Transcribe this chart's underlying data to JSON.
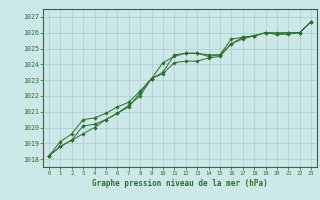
{
  "title": "Graphe pression niveau de la mer (hPa)",
  "bg_color": "#cce8e8",
  "grid_color": "#aacccc",
  "line_color": "#2d6e2d",
  "xlim": [
    -0.5,
    23.5
  ],
  "ylim": [
    1017.5,
    1027.5
  ],
  "yticks": [
    1018,
    1019,
    1020,
    1021,
    1022,
    1023,
    1024,
    1025,
    1026,
    1027
  ],
  "xticks": [
    0,
    1,
    2,
    3,
    4,
    5,
    6,
    7,
    8,
    9,
    10,
    11,
    12,
    13,
    14,
    15,
    16,
    17,
    18,
    19,
    20,
    21,
    22,
    23
  ],
  "series1": [
    1018.2,
    1018.8,
    1019.2,
    1019.6,
    1020.0,
    1020.5,
    1020.9,
    1021.4,
    1022.0,
    1023.1,
    1024.1,
    1024.5,
    1024.7,
    1024.7,
    1024.5,
    1024.6,
    1025.3,
    1025.7,
    1025.8,
    1026.0,
    1025.9,
    1025.9,
    1026.0,
    1026.7
  ],
  "series2": [
    1018.2,
    1018.8,
    1019.2,
    1020.1,
    1020.2,
    1020.5,
    1020.9,
    1021.3,
    1022.2,
    1023.1,
    1023.5,
    1024.6,
    1024.7,
    1024.7,
    1024.6,
    1024.6,
    1025.6,
    1025.7,
    1025.8,
    1026.0,
    1025.9,
    1026.0,
    1026.0,
    1026.7
  ],
  "series3": [
    1018.2,
    1019.1,
    1019.6,
    1020.5,
    1020.6,
    1020.9,
    1021.3,
    1021.6,
    1022.3,
    1023.1,
    1023.4,
    1024.1,
    1024.2,
    1024.2,
    1024.4,
    1024.5,
    1025.3,
    1025.6,
    1025.8,
    1026.0,
    1026.0,
    1026.0,
    1026.0,
    1026.7
  ]
}
